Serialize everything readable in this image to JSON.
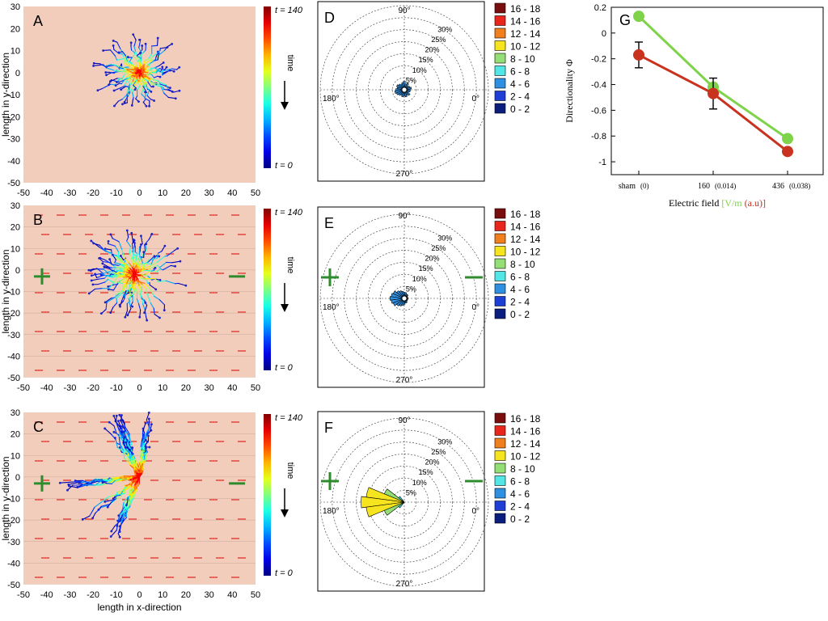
{
  "colors": {
    "panel_bg": "#f2cdbb",
    "field_arrow": "#e0261a",
    "electrode": "#2e8b2e",
    "green_series": "#7fd34a",
    "red_series": "#c8321f"
  },
  "chart_data": [
    {
      "id": "A",
      "type": "scatter",
      "panel_label": "A",
      "title": "",
      "xlabel": "",
      "ylabel": "length in y-direction",
      "xlim": [
        -50,
        50
      ],
      "ylim": [
        -50,
        30
      ],
      "xticks": [
        -50,
        -40,
        -30,
        -20,
        -10,
        0,
        10,
        20,
        30,
        40,
        50
      ],
      "yticks": [
        30,
        20,
        10,
        0,
        -10,
        -20,
        -30,
        -40,
        -50
      ],
      "field": false,
      "cluster": {
        "cx": 0,
        "cy": 0,
        "radius": 19,
        "bias": 0,
        "count": 55
      },
      "colorbar": {
        "top_label": "t = 140",
        "bottom_label": "t = 0",
        "arrow_label": "time"
      }
    },
    {
      "id": "B",
      "type": "scatter",
      "panel_label": "B",
      "title": "",
      "xlabel": "",
      "ylabel": "length in y-direction",
      "xlim": [
        -50,
        50
      ],
      "ylim": [
        -50,
        30
      ],
      "xticks": [
        -50,
        -40,
        -30,
        -20,
        -10,
        0,
        10,
        20,
        30,
        40,
        50
      ],
      "yticks": [
        30,
        20,
        10,
        0,
        -10,
        -20,
        -30,
        -40,
        -50
      ],
      "field": true,
      "cluster": {
        "cx": -2,
        "cy": -2,
        "radius": 23,
        "bias": 0.25,
        "count": 60
      },
      "colorbar": {
        "top_label": "t = 140",
        "bottom_label": "t = 0",
        "arrow_label": "time"
      }
    },
    {
      "id": "C",
      "type": "scatter",
      "panel_label": "C",
      "title": "",
      "xlabel": "length in x-direction",
      "ylabel": "length in y-direction",
      "xlim": [
        -50,
        50
      ],
      "ylim": [
        -50,
        30
      ],
      "xticks": [
        -50,
        -40,
        -30,
        -20,
        -10,
        0,
        10,
        20,
        30,
        40,
        50
      ],
      "yticks": [
        30,
        20,
        10,
        0,
        -10,
        -20,
        -30,
        -40,
        -50
      ],
      "field": true,
      "cluster": {
        "cx": 0,
        "cy": 0,
        "radius": 32,
        "bias": 1,
        "count": 70
      },
      "colorbar": {
        "top_label": "t = 140",
        "bottom_label": "t = 0",
        "arrow_label": "time"
      }
    },
    {
      "id": "D",
      "type": "polar_histogram",
      "panel_label": "D",
      "ring_labels": [
        "5%",
        "10%",
        "15%",
        "20%",
        "25%",
        "30%"
      ],
      "angle_labels": [
        "90°",
        "180°",
        "0°",
        "270°"
      ],
      "electrodes": false,
      "bins_deg": [
        0,
        15,
        30,
        45,
        60,
        75,
        90,
        105,
        120,
        135,
        150,
        165,
        180,
        195,
        210,
        225,
        240,
        255,
        270,
        285,
        300,
        315,
        330,
        345
      ],
      "percent": [
        2.5,
        3,
        2.5,
        2,
        3,
        2.5,
        3.5,
        3,
        2.5,
        3,
        3.5,
        3,
        3.5,
        4,
        3.5,
        3,
        2.5,
        3,
        2.5,
        3,
        2.5,
        3,
        2,
        2.5
      ],
      "legend": [
        "16 - 18",
        "14 - 16",
        "12 - 14",
        "10 - 12",
        "8 - 10",
        "6 - 8",
        "4 - 6",
        "2 - 4",
        "0 - 2"
      ],
      "legend_colors": [
        "#7a0d0d",
        "#e8261c",
        "#f07f1e",
        "#f6e51e",
        "#93df75",
        "#52e6e6",
        "#2f8fe0",
        "#1d3fd6",
        "#0b1e7d"
      ]
    },
    {
      "id": "E",
      "type": "polar_histogram",
      "panel_label": "E",
      "ring_labels": [
        "5%",
        "10%",
        "15%",
        "20%",
        "25%",
        "30%"
      ],
      "angle_labels": [
        "90°",
        "180°",
        "0°",
        "270°"
      ],
      "electrodes": true,
      "bins_deg": [
        0,
        15,
        30,
        45,
        60,
        75,
        90,
        105,
        120,
        135,
        150,
        165,
        180,
        195,
        210,
        225,
        240,
        255,
        270,
        285,
        300,
        315,
        330,
        345
      ],
      "percent": [
        1.5,
        1.5,
        1.5,
        2,
        2,
        2.5,
        2.5,
        3,
        3.5,
        4,
        5,
        5.5,
        6,
        5.5,
        5,
        4,
        3.5,
        3,
        2.5,
        2,
        2,
        1.5,
        1.5,
        1.5
      ],
      "legend": [
        "16 - 18",
        "14 - 16",
        "12 - 14",
        "10 - 12",
        "8 - 10",
        "6 - 8",
        "4 - 6",
        "2 - 4",
        "0 - 2"
      ],
      "legend_colors": [
        "#7a0d0d",
        "#e8261c",
        "#f07f1e",
        "#f6e51e",
        "#93df75",
        "#52e6e6",
        "#2f8fe0",
        "#1d3fd6",
        "#0b1e7d"
      ]
    },
    {
      "id": "F",
      "type": "polar_histogram",
      "panel_label": "F",
      "ring_labels": [
        "5%",
        "10%",
        "15%",
        "20%",
        "25%",
        "30%"
      ],
      "angle_labels": [
        "90°",
        "180°",
        "0°",
        "270°"
      ],
      "electrodes": true,
      "bins_deg": [
        135,
        150,
        165,
        180,
        195,
        210,
        225
      ],
      "percent": [
        3,
        9,
        16,
        18,
        16,
        9,
        3
      ],
      "legend": [
        "16 - 18",
        "14 - 16",
        "12 - 14",
        "10 - 12",
        "8 - 10",
        "6 - 8",
        "4 - 6",
        "2 - 4",
        "0 - 2"
      ],
      "legend_colors": [
        "#7a0d0d",
        "#e8261c",
        "#f07f1e",
        "#f6e51e",
        "#93df75",
        "#52e6e6",
        "#2f8fe0",
        "#1d3fd6",
        "#0b1e7d"
      ]
    },
    {
      "id": "G",
      "type": "line",
      "panel_label": "G",
      "title": "",
      "xlabel": "Electric field",
      "xlabel_unit_a": "[V/m",
      "xlabel_unit_b": "(a.u)]",
      "ylabel": "Directionality Φ",
      "categories": [
        "sham",
        "160",
        "436"
      ],
      "category_sub": [
        "(0)",
        "(0.014)",
        "(0.038)"
      ],
      "ylim": [
        -1.1,
        0.2
      ],
      "yticks": [
        0.2,
        0,
        -0.2,
        -0.4,
        -0.6,
        -0.8,
        -1
      ],
      "series": [
        {
          "name": "green",
          "values": [
            0.13,
            -0.42,
            -0.82
          ],
          "err": [
            0,
            0,
            0
          ]
        },
        {
          "name": "red",
          "values": [
            -0.17,
            -0.47,
            -0.92
          ],
          "err": [
            0.1,
            0.12,
            0
          ]
        }
      ]
    }
  ]
}
